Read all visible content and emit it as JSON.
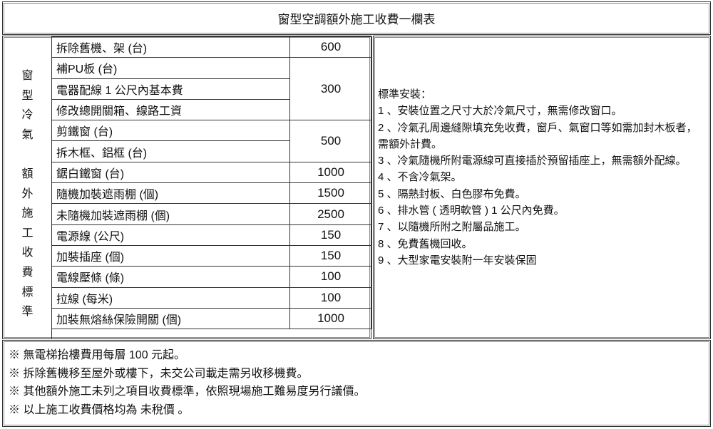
{
  "title": "窗型空調額外施工收費一欄表",
  "side_label": [
    "窗",
    "型",
    "冷",
    "氣",
    "",
    "額",
    "外",
    "施",
    "工",
    "收",
    "費",
    "標",
    "準"
  ],
  "rows": [
    {
      "item": "拆除舊機、架 (台)",
      "price": "600",
      "span": 1
    },
    {
      "item": "補PU板 (台)",
      "price": "300",
      "span": 3
    },
    {
      "item": "電器配線 1 公尺內基本費"
    },
    {
      "item": "修改總開關箱、線路工資"
    },
    {
      "item": "剪鐵窗 (台)",
      "price": "500",
      "span": 2
    },
    {
      "item": "拆木框、鋁框 (台)"
    },
    {
      "item": "鋸白鐵窗 (台)",
      "price": "1000",
      "span": 1
    },
    {
      "item": "隨機加裝遮雨棚 (個)",
      "price": "1500",
      "span": 1
    },
    {
      "item": "未隨機加裝遮雨棚 (個)",
      "price": "2500",
      "span": 1
    },
    {
      "item": "電源線 (公尺)",
      "price": "150",
      "span": 1
    },
    {
      "item": "加裝插座 (個)",
      "price": "150",
      "span": 1
    },
    {
      "item": "電線壓條 (條)",
      "price": "100",
      "span": 1
    },
    {
      "item": "拉線 (每米)",
      "price": "100",
      "span": 1
    },
    {
      "item": "加裝無熔絲保險開關 (個)",
      "price": "1000",
      "span": 1
    }
  ],
  "notes": {
    "heading": "標準安裝：",
    "items": [
      "1 、安裝位置之尺寸大於冷氣尺寸，無需修改窗口。",
      "2 、冷氣孔周邊縫隙填充免收費，窗戶、氣窗口等如需加封木板者，需額外計費。",
      "3 、冷氣隨機所附電源線可直接插於預留插座上，無需額外配線。",
      "4 、不含冷氣架。",
      "5 、隔熱封板、白色膠布免費。",
      "6 、排水管 ( 透明軟管 ) 1 公尺內免費。",
      "7 、以隨機所附之附屬品施工。",
      "8 、免費舊機回收。",
      "9 、大型家電安裝附一年安裝保固"
    ]
  },
  "footer": [
    "※ 無電梯抬樓費用每層 100 元起。",
    "※ 拆除舊機移至屋外或樓下，未交公司載走需另收移機費。",
    "※ 其他額外施工未列之項目收費標準，依照現場施工難易度另行議價。",
    "※ 以上施工收費價格均為 未稅價 。"
  ]
}
